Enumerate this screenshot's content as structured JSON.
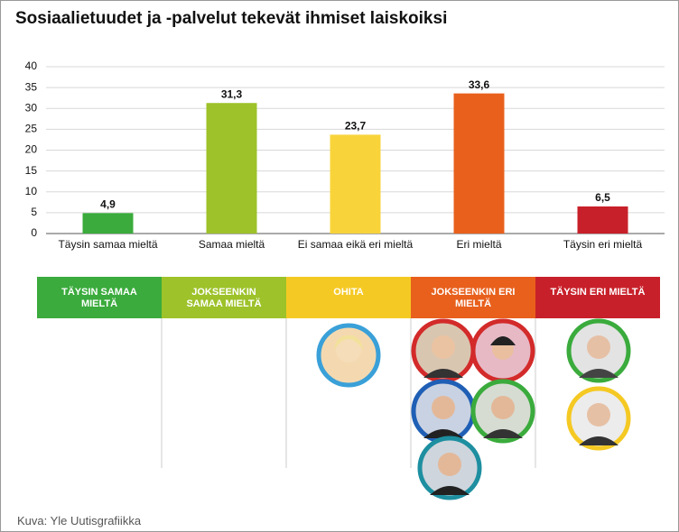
{
  "chart_data": {
    "type": "bar",
    "title": "Sosiaalietuudet ja -palvelut tekevät ihmiset laiskoiksi",
    "categories": [
      "Täysin samaa mieltä",
      "Samaa mieltä",
      "Ei samaa eikä eri mieltä",
      "Eri mieltä",
      "Täysin eri mieltä"
    ],
    "values": [
      4.9,
      31.3,
      23.7,
      33.6,
      6.5
    ],
    "value_labels": [
      "4,9",
      "31,3",
      "23,7",
      "33,6",
      "6,5"
    ],
    "colors": [
      "#3aab3c",
      "#9dc22a",
      "#f8d43a",
      "#e8601c",
      "#c8202a"
    ],
    "ylim": [
      0,
      40
    ],
    "yticks": [
      0,
      5,
      10,
      15,
      20,
      25,
      30,
      35,
      40
    ],
    "grid": true
  },
  "panel": {
    "columns": [
      {
        "label": "TÄYSIN SAMAA MIELTÄ",
        "color": "#3aab3c"
      },
      {
        "label": "JOKSEENKIN SAMAA MIELTÄ",
        "color": "#9dc22a"
      },
      {
        "label": "OHITA",
        "color": "#f5c923"
      },
      {
        "label": "JOKSEENKIN ERI MIELTÄ",
        "color": "#e8601c"
      },
      {
        "label": "TÄYSIN ERI MIELTÄ",
        "color": "#c8202a"
      }
    ]
  },
  "credit": "Kuva: Yle Uutisgrafiikka"
}
